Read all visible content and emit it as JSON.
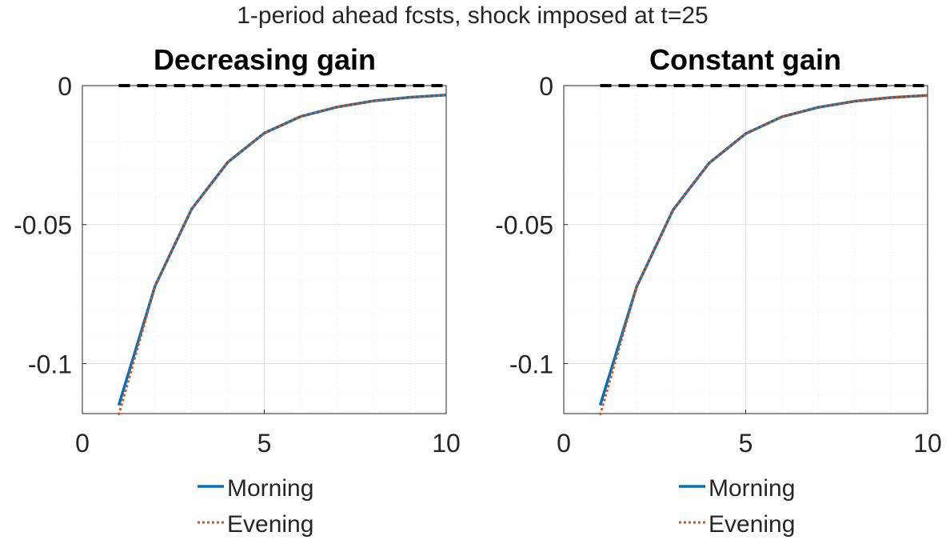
{
  "figure": {
    "suptitle": "1-period ahead fcsts, shock imposed at t=25"
  },
  "colors": {
    "morning": "#0072BD",
    "evening": "#D95319",
    "zero_line": "#000000",
    "axis": "#262626",
    "grid_major": "#dfdfdf",
    "grid_minor": "#ebebeb"
  },
  "chart_data": [
    {
      "type": "line",
      "title": "Decreasing gain",
      "xlabel": "",
      "ylabel": "",
      "xlim": [
        0,
        10
      ],
      "ylim": [
        -0.118,
        0.0
      ],
      "xticks": [
        0,
        5,
        10
      ],
      "xtick_labels": [
        "0",
        "5",
        "10"
      ],
      "yticks": [
        -0.1,
        -0.05,
        0
      ],
      "ytick_labels": [
        "-0.1",
        "-0.05",
        "0"
      ],
      "grid": true,
      "minor_grid": true,
      "legend_position": "below",
      "zero_line": {
        "style": "dashed",
        "y": 0,
        "x_range": [
          1,
          10
        ]
      },
      "series": [
        {
          "name": "Morning",
          "style": "solid",
          "x": [
            1,
            2,
            3,
            4,
            5,
            6,
            7,
            8,
            9,
            10
          ],
          "y": [
            -0.115,
            -0.072,
            -0.0445,
            -0.0275,
            -0.0171,
            -0.0111,
            -0.0077,
            -0.0055,
            -0.0042,
            -0.0034
          ]
        },
        {
          "name": "Evening",
          "style": "dotted",
          "x": [
            1,
            2,
            3,
            4,
            5,
            6,
            7,
            8,
            9,
            10
          ],
          "y": [
            -0.1185,
            -0.072,
            -0.0445,
            -0.0275,
            -0.0171,
            -0.0111,
            -0.0077,
            -0.0055,
            -0.0042,
            -0.0034
          ]
        }
      ]
    },
    {
      "type": "line",
      "title": "Constant gain",
      "xlabel": "",
      "ylabel": "",
      "xlim": [
        0,
        10
      ],
      "ylim": [
        -0.118,
        0.0
      ],
      "xticks": [
        0,
        5,
        10
      ],
      "xtick_labels": [
        "0",
        "5",
        "10"
      ],
      "yticks": [
        -0.1,
        -0.05,
        0
      ],
      "ytick_labels": [
        "-0.1",
        "-0.05",
        "0"
      ],
      "grid": true,
      "minor_grid": true,
      "legend_position": "below",
      "zero_line": {
        "style": "dashed",
        "y": 0,
        "x_range": [
          1,
          10
        ]
      },
      "series": [
        {
          "name": "Morning",
          "style": "solid",
          "x": [
            1,
            2,
            3,
            4,
            5,
            6,
            7,
            8,
            9,
            10
          ],
          "y": [
            -0.115,
            -0.0725,
            -0.0448,
            -0.0278,
            -0.0173,
            -0.0112,
            -0.0078,
            -0.0056,
            -0.0043,
            -0.0035
          ]
        },
        {
          "name": "Evening",
          "style": "dotted",
          "x": [
            1,
            2,
            3,
            4,
            5,
            6,
            7,
            8,
            9,
            10
          ],
          "y": [
            -0.1185,
            -0.0725,
            -0.0448,
            -0.0278,
            -0.0173,
            -0.0112,
            -0.0078,
            -0.0056,
            -0.0043,
            -0.0035
          ]
        }
      ]
    }
  ]
}
